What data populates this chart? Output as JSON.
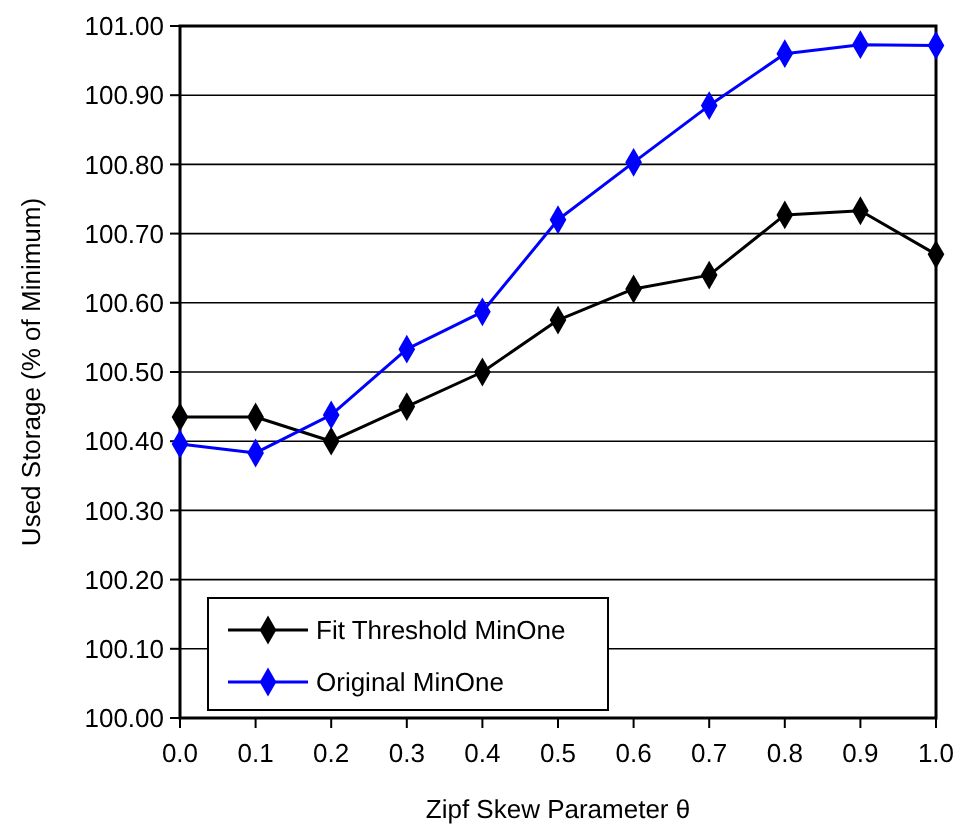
{
  "chart_data": {
    "type": "line",
    "xlabel": "Zipf Skew Parameter θ",
    "ylabel": "Used Storage (% of Minimum)",
    "x": [
      0,
      0.1,
      0.2,
      0.3,
      0.4,
      0.5,
      0.6,
      0.7,
      0.8,
      0.9,
      1.0
    ],
    "series": [
      {
        "name": "Fit Threshold MinOne",
        "color": "#000000",
        "values": [
          100.435,
          100.435,
          100.4,
          100.45,
          100.5,
          100.575,
          100.62,
          100.64,
          100.727,
          100.733,
          100.67
        ]
      },
      {
        "name": "Original MinOne",
        "color": "#0000ff",
        "values": [
          100.396,
          100.383,
          100.438,
          100.533,
          100.587,
          100.72,
          100.803,
          100.885,
          100.96,
          100.973,
          100.972
        ]
      }
    ],
    "xlim": [
      0,
      1
    ],
    "ylim": [
      100,
      101
    ],
    "xticks": [
      {
        "value": 0,
        "label": "0.0"
      },
      {
        "value": 0.1,
        "label": "0.1"
      },
      {
        "value": 0.2,
        "label": "0.2"
      },
      {
        "value": 0.3,
        "label": "0.3"
      },
      {
        "value": 0.4,
        "label": "0.4"
      },
      {
        "value": 0.5,
        "label": "0.5"
      },
      {
        "value": 0.6,
        "label": "0.6"
      },
      {
        "value": 0.7,
        "label": "0.7"
      },
      {
        "value": 0.8,
        "label": "0.8"
      },
      {
        "value": 0.9,
        "label": "0.9"
      },
      {
        "value": 1,
        "label": "1.0"
      }
    ],
    "yticks": [
      {
        "value": 100,
        "label": "100.00"
      },
      {
        "value": 100.1,
        "label": "100.10"
      },
      {
        "value": 100.2,
        "label": "100.20"
      },
      {
        "value": 100.3,
        "label": "100.30"
      },
      {
        "value": 100.4,
        "label": "100.40"
      },
      {
        "value": 100.5,
        "label": "100.50"
      },
      {
        "value": 100.6,
        "label": "100.60"
      },
      {
        "value": 100.7,
        "label": "100.70"
      },
      {
        "value": 100.8,
        "label": "100.80"
      },
      {
        "value": 100.9,
        "label": "100.90"
      },
      {
        "value": 101,
        "label": "101.00"
      }
    ],
    "grid": "y",
    "legend": "bottom left",
    "marker": "diamond",
    "line_style": "solid"
  }
}
